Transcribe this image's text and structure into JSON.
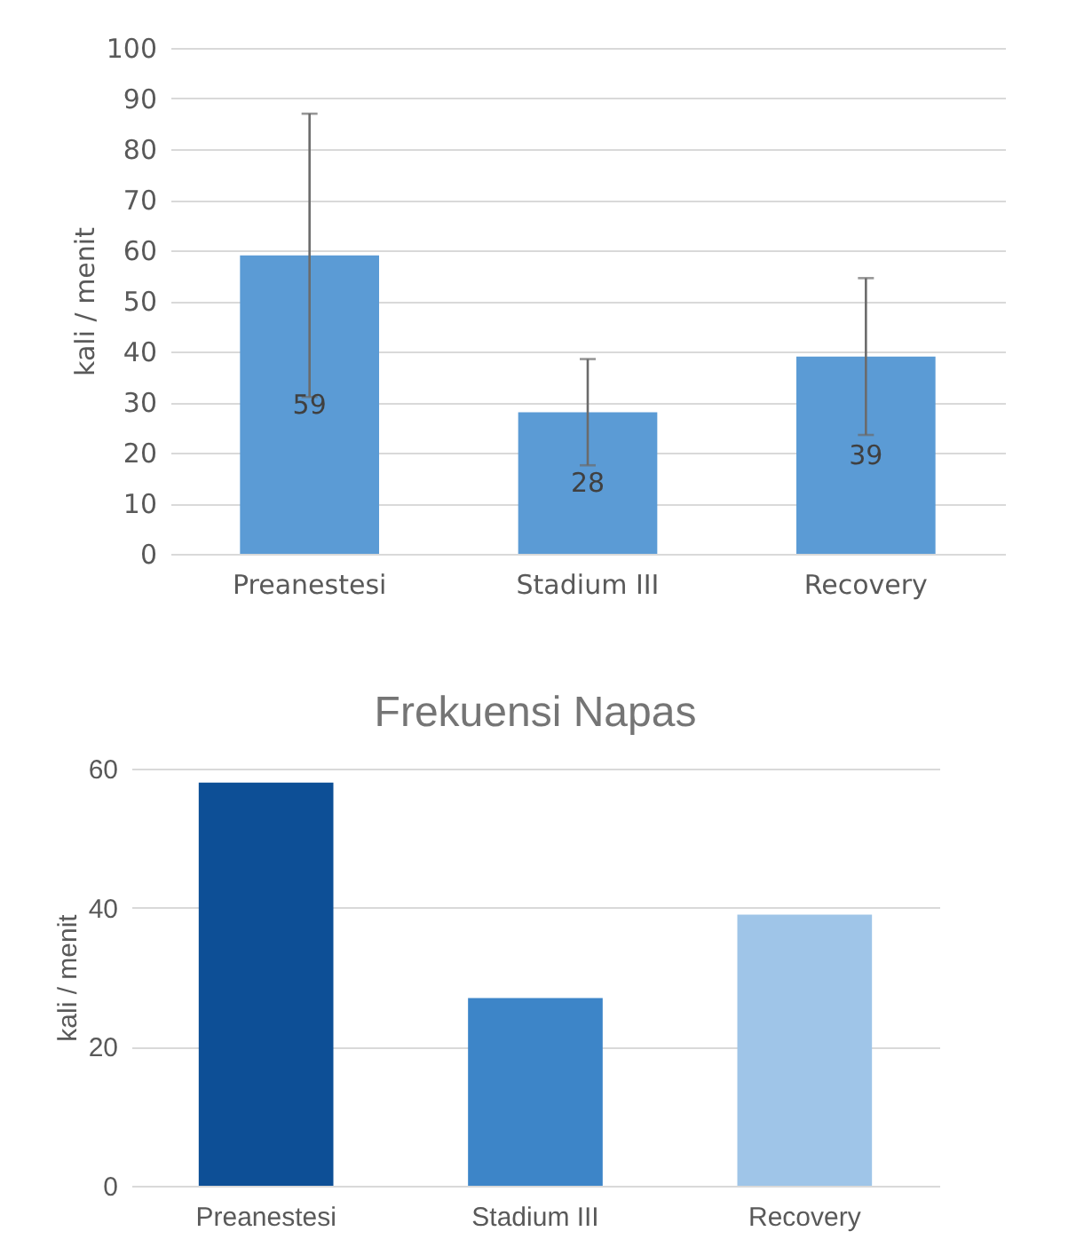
{
  "chart_data": [
    {
      "type": "bar",
      "ylabel": "kali / menit",
      "categories": [
        "Preanestesi",
        "Stadium III",
        "Recovery"
      ],
      "series": [
        {
          "color": "#5b9bd5",
          "values": [
            59,
            28,
            39
          ],
          "errors": [
            28,
            10.5,
            15.5
          ]
        }
      ],
      "ylim": [
        0,
        100
      ],
      "yticks": [
        0,
        10,
        20,
        30,
        40,
        50,
        60,
        70,
        80,
        90,
        100
      ],
      "grid": "y",
      "data_labels": true
    },
    {
      "type": "bar",
      "title": "Frekuensi Napas",
      "ylabel": "kali / menit",
      "categories": [
        "Preanestesi",
        "Stadium III",
        "Recovery"
      ],
      "series": [
        {
          "colors": [
            "#0d4f96",
            "#3d85c8",
            "#9fc5e8"
          ],
          "values": [
            58,
            27,
            39
          ]
        }
      ],
      "ylim": [
        0,
        60
      ],
      "yticks": [
        0,
        20,
        40,
        60
      ],
      "grid": "y"
    }
  ]
}
